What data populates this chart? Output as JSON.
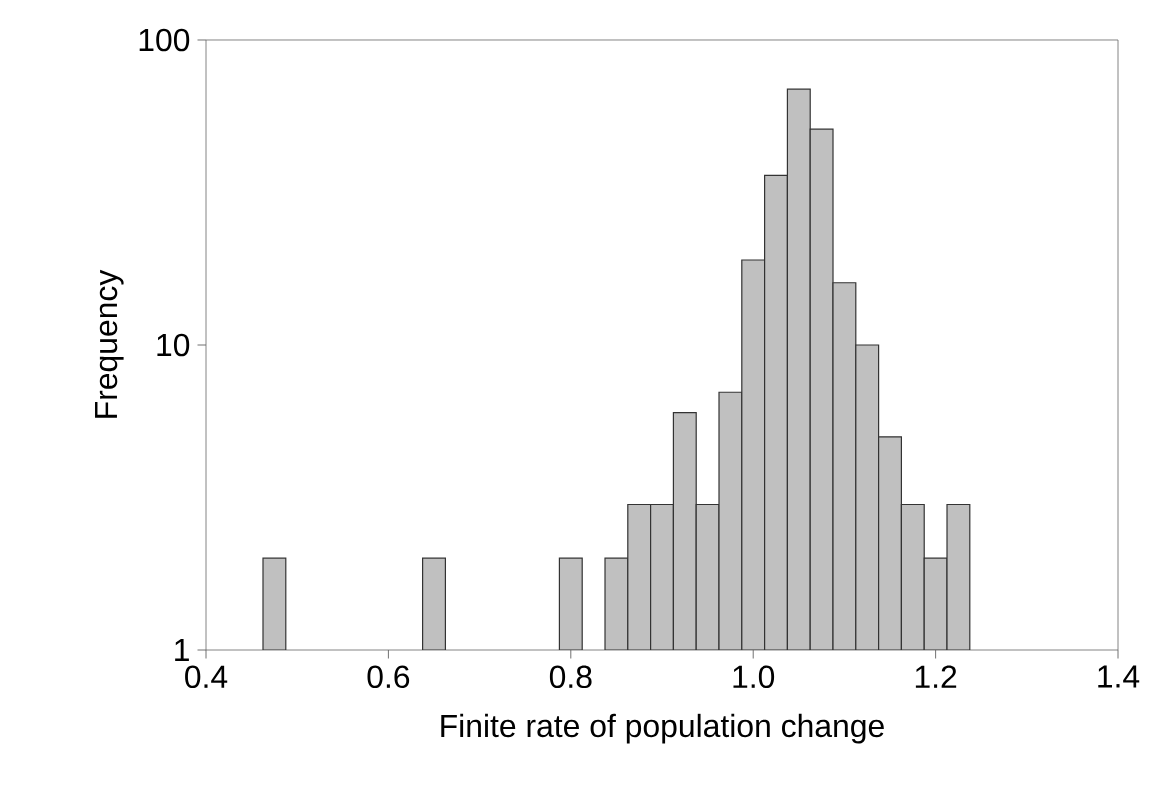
{
  "chart_data": {
    "type": "histogram",
    "xlabel": "Finite rate of population change",
    "ylabel": "Frequency",
    "bins": [
      0.4625,
      0.4875,
      0.5125,
      0.5375,
      0.5625,
      0.5875,
      0.6125,
      0.6375,
      0.6625,
      0.6875,
      0.7125,
      0.7375,
      0.7625,
      0.7875,
      0.8125,
      0.8375,
      0.8625,
      0.8875,
      0.9125,
      0.9375,
      0.9625,
      0.9875,
      1.0125,
      1.0375,
      1.0625,
      1.0875,
      1.1125,
      1.1375,
      1.1625,
      1.1875,
      1.2125,
      1.2375
    ],
    "values": [
      2,
      null,
      null,
      null,
      null,
      null,
      null,
      2,
      null,
      null,
      null,
      null,
      null,
      2,
      null,
      2,
      3,
      3,
      6,
      3,
      7,
      19,
      36,
      69,
      51,
      16,
      10,
      5,
      3,
      2,
      3
    ],
    "color": "#c0c0c0",
    "log": "y",
    "xlim": [
      0.4,
      1.4
    ],
    "xticks": [
      {
        "value": 0.4,
        "label": "0.4"
      },
      {
        "value": 0.6,
        "label": "0.6"
      },
      {
        "value": 0.8,
        "label": "0.8"
      },
      {
        "value": 1.0,
        "label": "1.0"
      },
      {
        "value": 1.2,
        "label": "1.2"
      },
      {
        "value": 1.4,
        "label": "1.4"
      }
    ],
    "ylim": [
      1,
      100
    ],
    "yticks": [
      1,
      10,
      100
    ]
  }
}
